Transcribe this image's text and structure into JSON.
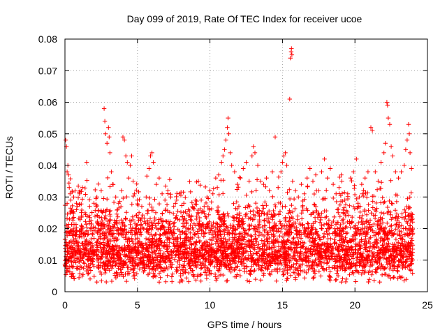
{
  "chart_data": {
    "type": "scatter",
    "title": "Day 099 of 2019, Rate Of TEC Index for receiver ucoe",
    "xlabel": "GPS time / hours",
    "ylabel": "ROTI / TECUs",
    "xlim": [
      0,
      25
    ],
    "ylim": [
      0,
      0.08
    ],
    "xticks": [
      0,
      5,
      10,
      15,
      20,
      25
    ],
    "yticks": [
      0,
      0.01,
      0.02,
      0.03,
      0.04,
      0.05,
      0.06,
      0.07,
      0.08
    ],
    "xtick_labels": [
      "0",
      "5",
      "10",
      "15",
      "20",
      "25"
    ],
    "ytick_labels": [
      "0",
      "0.01",
      "0.02",
      "0.03",
      "0.04",
      "0.05",
      "0.06",
      "0.07",
      "0.08"
    ],
    "grid": true,
    "marker": "+",
    "color": "#ff0000",
    "series": [
      {
        "points": [
          [
            0.05,
            0.048
          ],
          [
            0.1,
            0.046
          ],
          [
            0.15,
            0.038
          ],
          [
            0.2,
            0.04
          ],
          [
            0.25,
            0.037
          ],
          [
            0.3,
            0.033
          ],
          [
            0.35,
            0.031
          ],
          [
            0.4,
            0.029
          ],
          [
            0.6,
            0.03
          ],
          [
            0.8,
            0.028
          ],
          [
            1.0,
            0.031
          ],
          [
            1.2,
            0.033
          ],
          [
            1.5,
            0.041
          ],
          [
            1.7,
            0.027
          ],
          [
            2.0,
            0.028
          ],
          [
            2.2,
            0.03
          ],
          [
            2.5,
            0.032
          ],
          [
            2.7,
            0.058
          ],
          [
            2.75,
            0.054
          ],
          [
            2.8,
            0.05
          ],
          [
            2.9,
            0.047
          ],
          [
            3.0,
            0.052
          ],
          [
            3.05,
            0.049
          ],
          [
            3.1,
            0.044
          ],
          [
            3.2,
            0.038
          ],
          [
            3.3,
            0.034
          ],
          [
            3.5,
            0.03
          ],
          [
            3.7,
            0.028
          ],
          [
            3.9,
            0.032
          ],
          [
            4.0,
            0.049
          ],
          [
            4.1,
            0.048
          ],
          [
            4.2,
            0.043
          ],
          [
            4.3,
            0.041
          ],
          [
            4.4,
            0.036
          ],
          [
            4.5,
            0.04
          ],
          [
            4.6,
            0.043
          ],
          [
            4.7,
            0.035
          ],
          [
            4.8,
            0.031
          ],
          [
            5.0,
            0.029
          ],
          [
            5.3,
            0.027
          ],
          [
            5.6,
            0.03
          ],
          [
            5.8,
            0.039
          ],
          [
            5.9,
            0.043
          ],
          [
            6.0,
            0.044
          ],
          [
            6.1,
            0.041
          ],
          [
            6.3,
            0.034
          ],
          [
            6.5,
            0.036
          ],
          [
            6.7,
            0.031
          ],
          [
            6.9,
            0.029
          ],
          [
            7.1,
            0.032
          ],
          [
            7.3,
            0.03
          ],
          [
            7.5,
            0.027
          ],
          [
            7.7,
            0.029
          ],
          [
            7.9,
            0.031
          ],
          [
            8.2,
            0.028
          ],
          [
            8.5,
            0.026
          ],
          [
            8.8,
            0.027
          ],
          [
            9.0,
            0.029
          ],
          [
            9.2,
            0.035
          ],
          [
            9.4,
            0.029
          ],
          [
            9.6,
            0.027
          ],
          [
            9.8,
            0.03
          ],
          [
            10.0,
            0.032
          ],
          [
            10.2,
            0.031
          ],
          [
            10.4,
            0.036
          ],
          [
            10.6,
            0.037
          ],
          [
            10.8,
            0.041
          ],
          [
            10.9,
            0.043
          ],
          [
            11.0,
            0.045
          ],
          [
            11.1,
            0.048
          ],
          [
            11.2,
            0.052
          ],
          [
            11.25,
            0.055
          ],
          [
            11.3,
            0.05
          ],
          [
            11.4,
            0.044
          ],
          [
            11.5,
            0.04
          ],
          [
            11.7,
            0.038
          ],
          [
            11.9,
            0.034
          ],
          [
            12.1,
            0.036
          ],
          [
            12.3,
            0.039
          ],
          [
            12.5,
            0.041
          ],
          [
            12.7,
            0.035
          ],
          [
            12.9,
            0.043
          ],
          [
            13.0,
            0.046
          ],
          [
            13.1,
            0.044
          ],
          [
            13.3,
            0.04
          ],
          [
            13.5,
            0.035
          ],
          [
            13.7,
            0.034
          ],
          [
            13.9,
            0.036
          ],
          [
            14.1,
            0.032
          ],
          [
            14.3,
            0.038
          ],
          [
            14.5,
            0.049
          ],
          [
            14.7,
            0.033
          ],
          [
            14.9,
            0.038
          ],
          [
            15.0,
            0.041
          ],
          [
            15.1,
            0.043
          ],
          [
            15.2,
            0.044
          ],
          [
            15.3,
            0.04
          ],
          [
            15.5,
            0.061
          ],
          [
            15.55,
            0.074
          ],
          [
            15.6,
            0.076
          ],
          [
            15.62,
            0.077
          ],
          [
            15.65,
            0.075
          ],
          [
            15.7,
            0.035
          ],
          [
            15.9,
            0.032
          ],
          [
            16.1,
            0.03
          ],
          [
            16.3,
            0.034
          ],
          [
            16.5,
            0.031
          ],
          [
            16.7,
            0.036
          ],
          [
            16.9,
            0.039
          ],
          [
            17.1,
            0.035
          ],
          [
            17.3,
            0.037
          ],
          [
            17.5,
            0.032
          ],
          [
            17.7,
            0.038
          ],
          [
            17.9,
            0.042
          ],
          [
            18.1,
            0.036
          ],
          [
            18.3,
            0.039
          ],
          [
            18.5,
            0.034
          ],
          [
            18.7,
            0.031
          ],
          [
            18.9,
            0.033
          ],
          [
            19.1,
            0.035
          ],
          [
            19.3,
            0.029
          ],
          [
            19.5,
            0.031
          ],
          [
            19.7,
            0.036
          ],
          [
            19.9,
            0.038
          ],
          [
            20.1,
            0.042
          ],
          [
            20.3,
            0.03
          ],
          [
            20.5,
            0.031
          ],
          [
            20.7,
            0.036
          ],
          [
            20.9,
            0.038
          ],
          [
            21.1,
            0.052
          ],
          [
            21.2,
            0.051
          ],
          [
            21.4,
            0.038
          ],
          [
            21.6,
            0.035
          ],
          [
            21.8,
            0.041
          ],
          [
            22.0,
            0.044
          ],
          [
            22.1,
            0.047
          ],
          [
            22.2,
            0.06
          ],
          [
            22.25,
            0.059
          ],
          [
            22.3,
            0.055
          ],
          [
            22.4,
            0.053
          ],
          [
            22.5,
            0.046
          ],
          [
            22.6,
            0.043
          ],
          [
            22.8,
            0.038
          ],
          [
            23.0,
            0.036
          ],
          [
            23.2,
            0.038
          ],
          [
            23.4,
            0.04
          ],
          [
            23.5,
            0.045
          ],
          [
            23.6,
            0.048
          ],
          [
            23.7,
            0.053
          ],
          [
            23.75,
            0.05
          ],
          [
            23.8,
            0.044
          ],
          [
            23.9,
            0.039
          ]
        ],
        "band": {
          "x_min": 0.0,
          "x_max": 24.0,
          "y_min": 0.003,
          "y_max": 0.026,
          "typical_center": 0.012,
          "density": "very dense, thousands of points"
        }
      }
    ]
  }
}
